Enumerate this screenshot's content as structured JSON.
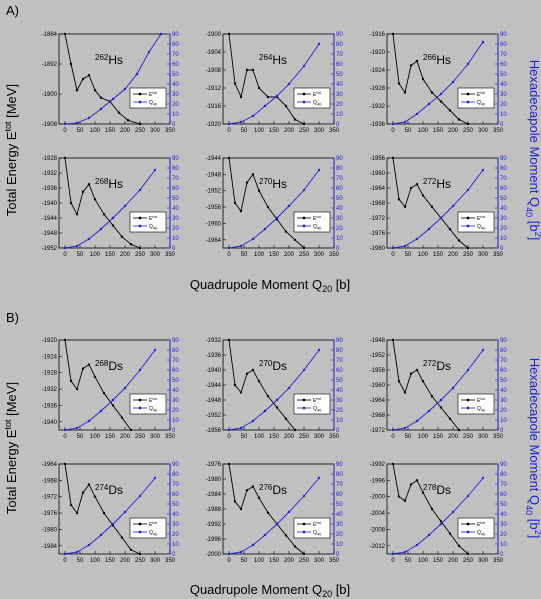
{
  "figure": {
    "panel_labels": [
      "A)",
      "B)"
    ],
    "ylabel_left_html": [
      "Total Energy E",
      "tot",
      " [MeV]"
    ],
    "ylabel_right_html": [
      "Hexadecapole Moment Q",
      "40",
      " [b",
      "2",
      "]"
    ],
    "xlabel_html": [
      "Quadrupole Moment Q",
      "20",
      " [b]"
    ],
    "legend": {
      "etot_main": "E",
      "etot_sup": "tot",
      "q40_main": "Q",
      "q40_sub": "40"
    },
    "colors": {
      "energy": "#000000",
      "q40": "#1f22d8",
      "background": "#c0c0c0"
    }
  },
  "chart_data": [
    {
      "type": "line",
      "title_mass": "262",
      "title_elem": "Hs",
      "group": "A)",
      "x_ticks": [
        0,
        50,
        100,
        150,
        200,
        250,
        300,
        350
      ],
      "xlim": [
        -20,
        350
      ],
      "y_left_ticks": [
        -1884,
        -1892,
        -1900,
        -1908
      ],
      "ylim_left": [
        -1908,
        -1884
      ],
      "y_right_ticks": [
        0,
        10,
        20,
        30,
        40,
        50,
        60,
        70,
        80,
        90
      ],
      "ylim_right": [
        0,
        90
      ],
      "series": [
        {
          "name": "E tot",
          "axis": "left",
          "x": [
            0,
            20,
            40,
            60,
            80,
            100,
            120,
            150,
            180,
            210,
            250
          ],
          "y": [
            -1884,
            -1892,
            -1899,
            -1896,
            -1895,
            -1899,
            -1901,
            -1902,
            -1905,
            -1907,
            -1908
          ]
        },
        {
          "name": "Q 40",
          "axis": "right",
          "x": [
            0,
            40,
            80,
            120,
            160,
            200,
            240,
            280,
            320
          ],
          "y": [
            0,
            1,
            6,
            15,
            25,
            35,
            50,
            72,
            90
          ]
        }
      ]
    },
    {
      "type": "line",
      "title_mass": "264",
      "title_elem": "Hs",
      "group": "A)",
      "x_ticks": [
        0,
        50,
        100,
        150,
        200,
        250,
        300,
        350
      ],
      "xlim": [
        -20,
        350
      ],
      "y_left_ticks": [
        -1900,
        -1904,
        -1908,
        -1912,
        -1916,
        -1920
      ],
      "ylim_left": [
        -1920,
        -1900
      ],
      "y_right_ticks": [
        0,
        10,
        20,
        30,
        40,
        50,
        60,
        70,
        80,
        90
      ],
      "ylim_right": [
        0,
        90
      ],
      "series": [
        {
          "name": "E tot",
          "axis": "left",
          "x": [
            0,
            20,
            40,
            60,
            80,
            100,
            130,
            160,
            190,
            220,
            250
          ],
          "y": [
            -1900,
            -1911,
            -1914,
            -1908,
            -1908,
            -1912,
            -1914,
            -1914,
            -1916,
            -1919,
            -1920
          ]
        },
        {
          "name": "Q 40",
          "axis": "right",
          "x": [
            0,
            40,
            80,
            120,
            160,
            200,
            250,
            300
          ],
          "y": [
            0,
            2,
            8,
            18,
            28,
            40,
            58,
            80
          ]
        }
      ]
    },
    {
      "type": "line",
      "title_mass": "266",
      "title_elem": "Hs",
      "group": "A)",
      "x_ticks": [
        0,
        50,
        100,
        150,
        200,
        250,
        300,
        350
      ],
      "xlim": [
        -20,
        350
      ],
      "y_left_ticks": [
        -1916,
        -1920,
        -1924,
        -1928,
        -1932,
        -1936
      ],
      "ylim_left": [
        -1936,
        -1916
      ],
      "y_right_ticks": [
        0,
        10,
        20,
        30,
        40,
        50,
        60,
        70,
        80,
        90
      ],
      "ylim_right": [
        0,
        90
      ],
      "series": [
        {
          "name": "E tot",
          "axis": "left",
          "x": [
            0,
            20,
            40,
            60,
            80,
            100,
            130,
            160,
            190,
            220,
            250
          ],
          "y": [
            -1916,
            -1927,
            -1929,
            -1923,
            -1922,
            -1926,
            -1929,
            -1931,
            -1933,
            -1935,
            -1936
          ]
        },
        {
          "name": "Q 40",
          "axis": "right",
          "x": [
            0,
            40,
            80,
            120,
            160,
            200,
            250,
            300
          ],
          "y": [
            0,
            2,
            10,
            20,
            30,
            42,
            60,
            82
          ]
        }
      ]
    },
    {
      "type": "line",
      "title_mass": "268",
      "title_elem": "Hs",
      "group": "A)",
      "x_ticks": [
        0,
        50,
        100,
        150,
        200,
        250,
        300,
        350
      ],
      "xlim": [
        -20,
        350
      ],
      "y_left_ticks": [
        -1928,
        -1932,
        -1936,
        -1940,
        -1944,
        -1948,
        -1952
      ],
      "ylim_left": [
        -1952,
        -1928
      ],
      "y_right_ticks": [
        0,
        10,
        20,
        30,
        40,
        50,
        60,
        70,
        80,
        90
      ],
      "ylim_right": [
        0,
        90
      ],
      "series": [
        {
          "name": "E tot",
          "axis": "left",
          "x": [
            0,
            20,
            40,
            60,
            80,
            100,
            130,
            160,
            190,
            220,
            250
          ],
          "y": [
            -1928,
            -1940,
            -1943,
            -1937,
            -1935,
            -1939,
            -1943,
            -1946,
            -1949,
            -1951,
            -1952
          ]
        },
        {
          "name": "Q 40",
          "axis": "right",
          "x": [
            0,
            40,
            80,
            120,
            160,
            200,
            250,
            300
          ],
          "y": [
            0,
            2,
            9,
            19,
            30,
            42,
            58,
            78
          ]
        }
      ]
    },
    {
      "type": "line",
      "title_mass": "270",
      "title_elem": "Hs",
      "group": "A)",
      "x_ticks": [
        0,
        50,
        100,
        150,
        200,
        250,
        300,
        350
      ],
      "xlim": [
        -20,
        350
      ],
      "y_left_ticks": [
        -1944,
        -1948,
        -1952,
        -1956,
        -1960,
        -1964
      ],
      "ylim_left": [
        -1966,
        -1944
      ],
      "y_right_ticks": [
        0,
        10,
        20,
        30,
        40,
        50,
        60,
        70,
        80,
        90
      ],
      "ylim_right": [
        0,
        90
      ],
      "series": [
        {
          "name": "E tot",
          "axis": "left",
          "x": [
            0,
            20,
            40,
            60,
            80,
            100,
            130,
            160,
            190,
            220,
            250
          ],
          "y": [
            -1944,
            -1955,
            -1957,
            -1950,
            -1948,
            -1952,
            -1956,
            -1959,
            -1962,
            -1964,
            -1966
          ]
        },
        {
          "name": "Q 40",
          "axis": "right",
          "x": [
            0,
            40,
            80,
            120,
            160,
            200,
            250,
            300
          ],
          "y": [
            0,
            2,
            9,
            19,
            30,
            42,
            58,
            78
          ]
        }
      ]
    },
    {
      "type": "line",
      "title_mass": "272",
      "title_elem": "Hs",
      "group": "A)",
      "x_ticks": [
        0,
        50,
        100,
        150,
        200,
        250,
        300,
        350
      ],
      "xlim": [
        -20,
        350
      ],
      "y_left_ticks": [
        -1956,
        -1960,
        -1964,
        -1968,
        -1972,
        -1976,
        -1980
      ],
      "ylim_left": [
        -1980,
        -1956
      ],
      "y_right_ticks": [
        0,
        10,
        20,
        30,
        40,
        50,
        60,
        70,
        80,
        90
      ],
      "ylim_right": [
        0,
        90
      ],
      "series": [
        {
          "name": "E tot",
          "axis": "left",
          "x": [
            0,
            20,
            40,
            60,
            80,
            100,
            130,
            160,
            190,
            220,
            250
          ],
          "y": [
            -1956,
            -1967,
            -1969,
            -1964,
            -1963,
            -1966,
            -1969,
            -1972,
            -1975,
            -1978,
            -1980
          ]
        },
        {
          "name": "Q 40",
          "axis": "right",
          "x": [
            0,
            40,
            80,
            120,
            160,
            200,
            250,
            300
          ],
          "y": [
            0,
            2,
            9,
            19,
            30,
            42,
            58,
            78
          ]
        }
      ]
    },
    {
      "type": "line",
      "title_mass": "268",
      "title_elem": "Ds",
      "group": "B)",
      "x_ticks": [
        0,
        50,
        100,
        150,
        200,
        250,
        300,
        350
      ],
      "xlim": [
        -20,
        350
      ],
      "y_left_ticks": [
        -1920,
        -1924,
        -1928,
        -1932,
        -1936,
        -1940
      ],
      "ylim_left": [
        -1942,
        -1920
      ],
      "y_right_ticks": [
        0,
        10,
        20,
        30,
        40,
        50,
        60,
        70,
        80,
        90
      ],
      "ylim_right": [
        0,
        90
      ],
      "series": [
        {
          "name": "E tot",
          "axis": "left",
          "x": [
            0,
            20,
            40,
            60,
            80,
            100,
            130,
            160,
            190,
            220
          ],
          "y": [
            -1920,
            -1930,
            -1932,
            -1927,
            -1926,
            -1929,
            -1933,
            -1936,
            -1939,
            -1942
          ]
        },
        {
          "name": "Q 40",
          "axis": "right",
          "x": [
            0,
            40,
            80,
            120,
            160,
            200,
            250,
            300
          ],
          "y": [
            0,
            2,
            9,
            19,
            30,
            42,
            60,
            80
          ]
        }
      ]
    },
    {
      "type": "line",
      "title_mass": "270",
      "title_elem": "Ds",
      "group": "B)",
      "x_ticks": [
        0,
        50,
        100,
        150,
        200,
        250,
        300,
        350
      ],
      "xlim": [
        -20,
        350
      ],
      "y_left_ticks": [
        -1932,
        -1936,
        -1940,
        -1944,
        -1948,
        -1952,
        -1956
      ],
      "ylim_left": [
        -1956,
        -1932
      ],
      "y_right_ticks": [
        0,
        10,
        20,
        30,
        40,
        50,
        60,
        70,
        80,
        90
      ],
      "ylim_right": [
        0,
        90
      ],
      "series": [
        {
          "name": "E tot",
          "axis": "left",
          "x": [
            0,
            20,
            40,
            60,
            80,
            100,
            130,
            160,
            190,
            220
          ],
          "y": [
            -1932,
            -1944,
            -1946,
            -1941,
            -1940,
            -1943,
            -1947,
            -1950,
            -1953,
            -1956
          ]
        },
        {
          "name": "Q 40",
          "axis": "right",
          "x": [
            0,
            40,
            80,
            120,
            160,
            200,
            250,
            300
          ],
          "y": [
            0,
            2,
            9,
            19,
            30,
            42,
            60,
            80
          ]
        }
      ]
    },
    {
      "type": "line",
      "title_mass": "272",
      "title_elem": "Ds",
      "group": "B)",
      "x_ticks": [
        0,
        50,
        100,
        150,
        200,
        250,
        300,
        350
      ],
      "xlim": [
        -20,
        350
      ],
      "y_left_ticks": [
        -1948,
        -1952,
        -1956,
        -1960,
        -1964,
        -1968,
        -1972
      ],
      "ylim_left": [
        -1972,
        -1948
      ],
      "y_right_ticks": [
        0,
        10,
        20,
        30,
        40,
        50,
        60,
        70,
        80,
        90
      ],
      "ylim_right": [
        0,
        90
      ],
      "series": [
        {
          "name": "E tot",
          "axis": "left",
          "x": [
            0,
            20,
            40,
            60,
            80,
            100,
            130,
            160,
            190,
            220
          ],
          "y": [
            -1948,
            -1959,
            -1962,
            -1957,
            -1956,
            -1959,
            -1963,
            -1966,
            -1969,
            -1972
          ]
        },
        {
          "name": "Q 40",
          "axis": "right",
          "x": [
            0,
            40,
            80,
            120,
            160,
            200,
            250,
            300
          ],
          "y": [
            0,
            2,
            9,
            19,
            30,
            42,
            60,
            80
          ]
        }
      ]
    },
    {
      "type": "line",
      "title_mass": "274",
      "title_elem": "Ds",
      "group": "B)",
      "x_ticks": [
        0,
        50,
        100,
        150,
        200,
        250,
        300,
        350
      ],
      "xlim": [
        -20,
        350
      ],
      "y_left_ticks": [
        -1964,
        -1968,
        -1972,
        -1976,
        -1980,
        -1984
      ],
      "ylim_left": [
        -1986,
        -1964
      ],
      "y_right_ticks": [
        0,
        10,
        20,
        30,
        40,
        50,
        60,
        70,
        80,
        90
      ],
      "ylim_right": [
        0,
        90
      ],
      "series": [
        {
          "name": "E tot",
          "axis": "left",
          "x": [
            0,
            20,
            40,
            60,
            80,
            100,
            130,
            160,
            190,
            220,
            250
          ],
          "y": [
            -1964,
            -1974,
            -1976,
            -1971,
            -1969,
            -1972,
            -1976,
            -1979,
            -1982,
            -1985,
            -1986
          ]
        },
        {
          "name": "Q 40",
          "axis": "right",
          "x": [
            0,
            40,
            80,
            120,
            160,
            200,
            250,
            300
          ],
          "y": [
            0,
            2,
            9,
            19,
            30,
            42,
            58,
            76
          ]
        }
      ]
    },
    {
      "type": "line",
      "title_mass": "276",
      "title_elem": "Ds",
      "group": "B)",
      "x_ticks": [
        0,
        50,
        100,
        150,
        200,
        250,
        300,
        350
      ],
      "xlim": [
        -20,
        350
      ],
      "y_left_ticks": [
        -1976,
        -1980,
        -1984,
        -1988,
        -1992,
        -1996,
        -2000
      ],
      "ylim_left": [
        -2000,
        -1976
      ],
      "y_right_ticks": [
        0,
        10,
        20,
        30,
        40,
        50,
        60,
        70,
        80,
        90
      ],
      "ylim_right": [
        0,
        90
      ],
      "series": [
        {
          "name": "E tot",
          "axis": "left",
          "x": [
            0,
            20,
            40,
            60,
            80,
            100,
            130,
            160,
            190,
            220,
            250
          ],
          "y": [
            -1976,
            -1986,
            -1988,
            -1983,
            -1982,
            -1985,
            -1989,
            -1992,
            -1995,
            -1998,
            -2000
          ]
        },
        {
          "name": "Q 40",
          "axis": "right",
          "x": [
            0,
            40,
            80,
            120,
            160,
            200,
            250,
            300
          ],
          "y": [
            0,
            2,
            9,
            19,
            30,
            42,
            58,
            76
          ]
        }
      ]
    },
    {
      "type": "line",
      "title_mass": "278",
      "title_elem": "Ds",
      "group": "B)",
      "x_ticks": [
        0,
        50,
        100,
        150,
        200,
        250,
        300,
        350
      ],
      "xlim": [
        -20,
        350
      ],
      "y_left_ticks": [
        -1992,
        -1996,
        -2000,
        -2004,
        -2008,
        -2012
      ],
      "ylim_left": [
        -2014,
        -1992
      ],
      "y_right_ticks": [
        0,
        10,
        20,
        30,
        40,
        50,
        60,
        70,
        80,
        90
      ],
      "ylim_right": [
        0,
        90
      ],
      "series": [
        {
          "name": "E tot",
          "axis": "left",
          "x": [
            0,
            20,
            40,
            60,
            80,
            100,
            130,
            160,
            190,
            220,
            250
          ],
          "y": [
            -1992,
            -2000,
            -2001,
            -1997,
            -1996,
            -1999,
            -2003,
            -2006,
            -2009,
            -2012,
            -2014
          ]
        },
        {
          "name": "Q 40",
          "axis": "right",
          "x": [
            0,
            40,
            80,
            120,
            160,
            200,
            250,
            300
          ],
          "y": [
            0,
            2,
            9,
            19,
            30,
            42,
            58,
            76
          ]
        }
      ]
    }
  ]
}
